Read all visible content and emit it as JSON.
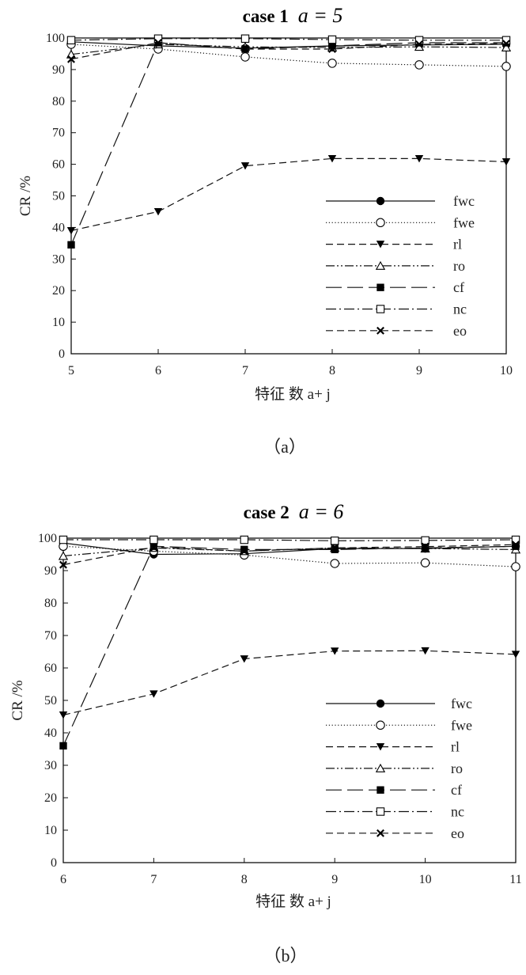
{
  "chart_data": [
    {
      "type": "line",
      "title": "case 1",
      "title_equation": "a = 5",
      "xlabel": "特征 数 a+ j",
      "ylabel": "CR /%",
      "caption": "（a）",
      "x": [
        5,
        6,
        7,
        8,
        9,
        10
      ],
      "xlim": [
        5,
        10
      ],
      "ylim": [
        0,
        100
      ],
      "xticks": [
        "5",
        "6",
        "7",
        "8",
        "9",
        "10"
      ],
      "yticks": [
        "0",
        "10",
        "20",
        "30",
        "40",
        "50",
        "60",
        "70",
        "80",
        "90",
        "100"
      ],
      "legend_position": "lower-right",
      "grid": false,
      "series": [
        {
          "name": "fwc",
          "style": "solid",
          "marker": "filled-circle",
          "values": [
            98.8,
            97.5,
            96.8,
            97.5,
            97.8,
            98.0
          ]
        },
        {
          "name": "fwe",
          "style": "dotted",
          "marker": "open-circle",
          "values": [
            98.0,
            96.5,
            94.0,
            92.0,
            91.5,
            91.0
          ]
        },
        {
          "name": "rl",
          "style": "dashed",
          "marker": "filled-triangle",
          "values": [
            39.0,
            45.0,
            59.5,
            61.8,
            61.8,
            60.8
          ]
        },
        {
          "name": "ro",
          "style": "dash-dot-dot",
          "marker": "open-triangle",
          "values": [
            94.8,
            98.0,
            97.2,
            97.0,
            97.2,
            97.0
          ]
        },
        {
          "name": "cf",
          "style": "long-dash",
          "marker": "filled-square",
          "values": [
            34.5,
            98.5,
            96.5,
            97.5,
            98.5,
            98.5
          ]
        },
        {
          "name": "nc",
          "style": "dash-dot",
          "marker": "open-square",
          "values": [
            99.3,
            99.8,
            99.8,
            99.5,
            99.3,
            99.3
          ]
        },
        {
          "name": "eo",
          "style": "dashed",
          "marker": "x",
          "values": [
            93.3,
            98.5,
            96.5,
            96.5,
            98.0,
            98.2
          ]
        }
      ]
    },
    {
      "type": "line",
      "title": "case 2",
      "title_equation": "a = 6",
      "xlabel": "特征 数 a+ j",
      "ylabel": "CR /%",
      "caption": "（b）",
      "x": [
        6,
        7,
        8,
        9,
        10,
        11
      ],
      "xlim": [
        6,
        11
      ],
      "ylim": [
        0,
        100
      ],
      "xticks": [
        "6",
        "7",
        "8",
        "9",
        "10",
        "11"
      ],
      "yticks": [
        "0",
        "10",
        "20",
        "30",
        "40",
        "50",
        "60",
        "70",
        "80",
        "90",
        "100"
      ],
      "legend_position": "lower-right",
      "grid": false,
      "series": [
        {
          "name": "fwc",
          "style": "solid",
          "marker": "filled-circle",
          "values": [
            98.5,
            95.0,
            95.2,
            96.8,
            96.8,
            97.5
          ]
        },
        {
          "name": "fwe",
          "style": "dotted",
          "marker": "open-circle",
          "values": [
            97.5,
            96.0,
            94.8,
            92.2,
            92.4,
            91.2
          ]
        },
        {
          "name": "rl",
          "style": "dashed",
          "marker": "filled-triangle",
          "values": [
            45.5,
            52.0,
            62.8,
            65.2,
            65.3,
            64.2
          ]
        },
        {
          "name": "ro",
          "style": "dash-dot-dot",
          "marker": "open-triangle",
          "values": [
            94.5,
            97.0,
            96.0,
            97.0,
            96.8,
            96.5
          ]
        },
        {
          "name": "cf",
          "style": "long-dash",
          "marker": "filled-square",
          "values": [
            36.0,
            97.5,
            96.5,
            96.5,
            97.0,
            97.5
          ]
        },
        {
          "name": "nc",
          "style": "dash-dot",
          "marker": "open-square",
          "values": [
            99.5,
            99.5,
            99.5,
            99.2,
            99.3,
            99.5
          ]
        },
        {
          "name": "eo",
          "style": "dashed",
          "marker": "x",
          "values": [
            91.8,
            97.2,
            96.0,
            97.0,
            97.4,
            98.0
          ]
        }
      ]
    }
  ]
}
